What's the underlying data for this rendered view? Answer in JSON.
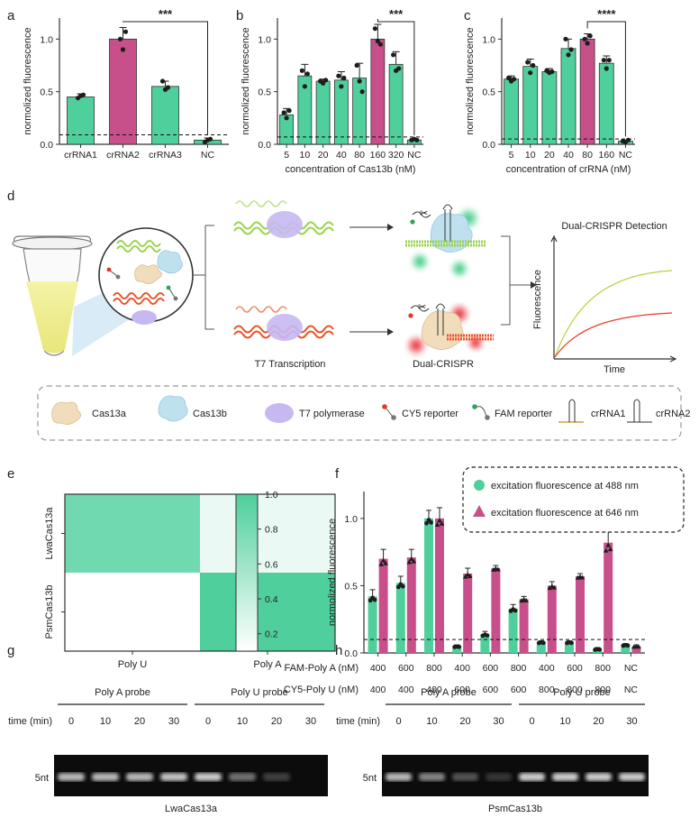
{
  "panel_letters": [
    "a",
    "b",
    "c",
    "d",
    "e",
    "f",
    "g",
    "h"
  ],
  "colors": {
    "green": "#4ecf9b",
    "pink": "#c7508a",
    "gel_bg": "#0c0c0c",
    "gel_band": "#d6d6d6"
  },
  "chart_data": [
    {
      "panel": "a",
      "type": "bar",
      "ylabel": "normolized fluorescence",
      "xlabel": "",
      "ylim": [
        0,
        1.2
      ],
      "yticks": [
        "0.0",
        "0.5",
        "1.0"
      ],
      "ytick_values": [
        0,
        0.5,
        1.0
      ],
      "categories": [
        "crRNA1",
        "crRNA2",
        "crRNA3",
        "NC"
      ],
      "values": [
        0.45,
        1.0,
        0.55,
        0.04
      ],
      "errors": [
        0.03,
        0.11,
        0.05,
        0.02
      ],
      "points": [
        [
          0.44,
          0.46,
          0.47
        ],
        [
          1.0,
          0.9,
          1.07
        ],
        [
          0.6,
          0.52,
          0.54
        ],
        [
          0.02,
          0.04,
          0.05
        ]
      ],
      "highlight": 1,
      "baseline": 0.09,
      "significance": {
        "label": "***",
        "from": 1,
        "to": 3
      }
    },
    {
      "panel": "b",
      "type": "bar",
      "ylabel": "normolized fluorescence",
      "xlabel": "concentration of Cas13b (nM)",
      "ylim": [
        0,
        1.2
      ],
      "yticks": [
        "0.0",
        "0.5",
        "1.0"
      ],
      "ytick_values": [
        0,
        0.5,
        1.0
      ],
      "categories": [
        "5",
        "10",
        "20",
        "40",
        "80",
        "160",
        "320",
        "NC"
      ],
      "values": [
        0.28,
        0.65,
        0.6,
        0.61,
        0.63,
        1.0,
        0.76,
        0.04
      ],
      "errors": [
        0.06,
        0.11,
        0.02,
        0.08,
        0.14,
        0.14,
        0.12,
        0.01
      ],
      "points": [
        [
          0.3,
          0.25,
          0.32
        ],
        [
          0.7,
          0.55,
          0.67
        ],
        [
          0.6,
          0.58,
          0.61
        ],
        [
          0.65,
          0.55,
          0.63
        ],
        [
          0.75,
          0.6,
          0.5
        ],
        [
          1.1,
          0.98,
          0.95
        ],
        [
          0.85,
          0.7,
          0.72
        ],
        [
          0.04,
          0.05,
          0.04
        ]
      ],
      "highlight": 5,
      "baseline": 0.07,
      "significance": {
        "label": "***",
        "from": 5,
        "to": 7
      }
    },
    {
      "panel": "c",
      "type": "bar",
      "ylabel": "normolized fluorescence",
      "xlabel": "concentration of crRNA (nM)",
      "ylim": [
        0,
        1.2
      ],
      "yticks": [
        "0.0",
        "0.5",
        "1.0"
      ],
      "ytick_values": [
        0,
        0.5,
        1.0
      ],
      "categories": [
        "5",
        "10",
        "20",
        "40",
        "80",
        "160",
        "NC"
      ],
      "values": [
        0.62,
        0.74,
        0.69,
        0.91,
        1.0,
        0.77,
        0.03
      ],
      "errors": [
        0.03,
        0.07,
        0.03,
        0.09,
        0.05,
        0.07,
        0.01
      ],
      "points": [
        [
          0.63,
          0.6,
          0.62
        ],
        [
          0.78,
          0.68,
          0.75
        ],
        [
          0.7,
          0.68,
          0.69
        ],
        [
          1.0,
          0.85,
          0.9
        ],
        [
          1.0,
          0.96,
          1.03
        ],
        [
          0.8,
          0.72,
          0.8
        ],
        [
          0.03,
          0.02,
          0.04
        ]
      ],
      "highlight": 4,
      "baseline": 0.05,
      "significance": {
        "label": "****",
        "from": 4,
        "to": 6
      }
    },
    {
      "panel": "e",
      "type": "heatmap",
      "rows": [
        "LwaCas13a",
        "PsmCas13b"
      ],
      "cols": [
        "Poly U",
        "Poly A"
      ],
      "values": [
        [
          0.8,
          0.12
        ],
        [
          0.0,
          1.0
        ]
      ],
      "colorbar_ticks": [
        "1.0",
        "0.8",
        "0.6",
        "0.4",
        "0.2"
      ],
      "colorbar_tick_values": [
        1.0,
        0.8,
        0.6,
        0.4,
        0.2
      ],
      "colorbar_range": [
        0.1,
        1.0
      ]
    },
    {
      "panel": "f",
      "type": "bar",
      "ylabel": "normolized fluorescence",
      "ylim": [
        0,
        1.2
      ],
      "yticks": [
        "0.0",
        "0.5",
        "1.0"
      ],
      "ytick_values": [
        0,
        0.5,
        1.0
      ],
      "baseline": 0.1,
      "row_labels": [
        "FAM-Poly A (nM)",
        "CY5-Poly U (nM)"
      ],
      "fam_poly_a": [
        "400",
        "600",
        "800",
        "400",
        "600",
        "800",
        "400",
        "600",
        "800",
        "NC"
      ],
      "cy5_poly_u": [
        "400",
        "400",
        "400",
        "600",
        "600",
        "600",
        "800",
        "800",
        "800",
        "NC"
      ],
      "series": [
        {
          "name": "excitation fluorescence at 488 nm",
          "color": "#4ecf9b",
          "marker": "circle",
          "values": [
            0.42,
            0.52,
            1.0,
            0.05,
            0.14,
            0.33,
            0.08,
            0.08,
            0.03,
            0.06
          ],
          "errors": [
            0.05,
            0.05,
            0.06,
            0.01,
            0.02,
            0.03,
            0.01,
            0.01,
            0.01,
            0.01
          ]
        },
        {
          "name": "excitation fluorescence at 646 nm",
          "color": "#c7508a",
          "marker": "triangle",
          "values": [
            0.7,
            0.71,
            1.0,
            0.59,
            0.63,
            0.4,
            0.5,
            0.57,
            0.82,
            0.05
          ],
          "errors": [
            0.07,
            0.06,
            0.08,
            0.04,
            0.02,
            0.02,
            0.03,
            0.02,
            0.1,
            0.01
          ]
        }
      ]
    }
  ],
  "panel_d": {
    "arrow_top_label": "T7 Transcription",
    "arrow_bottom_label": "Dual-CRISPR",
    "plot_title": "Dual-CRISPR Detection",
    "plot_ylabel": "Fluorescence",
    "plot_xlabel": "Time",
    "legend": [
      {
        "icon": "cas13a-icon",
        "label": "Cas13a"
      },
      {
        "icon": "cas13b-icon",
        "label": "Cas13b"
      },
      {
        "icon": "t7-polymerase-icon",
        "label": "T7 polymerase"
      },
      {
        "icon": "cy5-reporter-icon",
        "label": "CY5 reporter"
      },
      {
        "icon": "fam-reporter-icon",
        "label": "FAM reporter"
      },
      {
        "icon": "crrna1-icon",
        "label": "crRNA1"
      },
      {
        "icon": "crrna2-icon",
        "label": "crRNA2"
      }
    ]
  },
  "gels": [
    {
      "panel": "g",
      "caption": "LwaCas13a",
      "time_label": "time (min)",
      "marker": "5nt",
      "groups": [
        {
          "label": "Poly A probe",
          "times": [
            "0",
            "10",
            "20",
            "30"
          ]
        },
        {
          "label": "Poly U probe",
          "times": [
            "0",
            "10",
            "20",
            "30"
          ]
        }
      ],
      "band_intensity": [
        0.85,
        0.85,
        0.85,
        0.9,
        0.95,
        0.5,
        0.25,
        0.0
      ]
    },
    {
      "panel": "h",
      "caption": "PsmCas13b",
      "time_label": "time (min)",
      "marker": "5nt",
      "groups": [
        {
          "label": "Poly A probe",
          "times": [
            "0",
            "10",
            "20",
            "30"
          ]
        },
        {
          "label": "Poly U probe",
          "times": [
            "0",
            "10",
            "20",
            "30"
          ]
        }
      ],
      "band_intensity": [
        0.85,
        0.6,
        0.35,
        0.2,
        0.95,
        0.95,
        0.95,
        0.95
      ]
    }
  ]
}
